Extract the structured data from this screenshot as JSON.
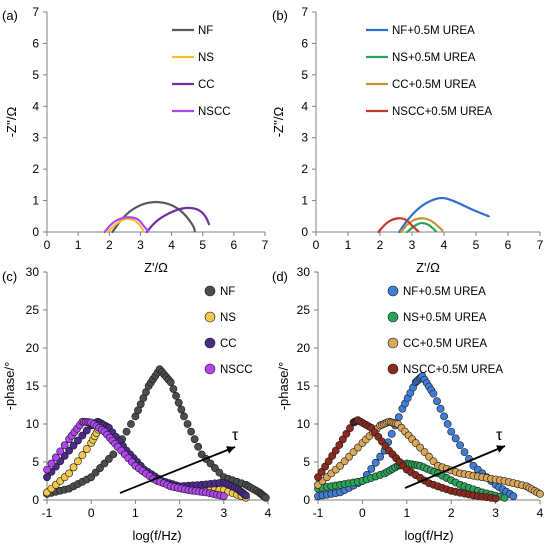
{
  "figure": {
    "panels": [
      {
        "id": "a",
        "label": "(a)",
        "xlabel": "Z'/Ω",
        "ylabel": "-Z''/Ω",
        "xlim": [
          0,
          7
        ],
        "ylim": [
          0,
          7
        ],
        "xticks": [
          "0",
          "1",
          "2",
          "3",
          "4",
          "5",
          "6",
          "7"
        ],
        "yticks": [
          "0",
          "1",
          "2",
          "3",
          "4",
          "5",
          "6",
          "7"
        ],
        "legend": [
          {
            "name": "NF",
            "color": "#595959"
          },
          {
            "name": "NS",
            "color": "#f2c12e"
          },
          {
            "name": "CC",
            "color": "#7030a0"
          },
          {
            "name": "NSCC",
            "color": "#b146f0"
          }
        ]
      },
      {
        "id": "b",
        "label": "(b)",
        "xlabel": "Z'/Ω",
        "ylabel": "-Z''/Ω",
        "xlim": [
          0,
          7
        ],
        "ylim": [
          0,
          7
        ],
        "xticks": [
          "0",
          "1",
          "2",
          "3",
          "4",
          "5",
          "6",
          "7"
        ],
        "yticks": [
          "0",
          "1",
          "2",
          "3",
          "4",
          "5",
          "6",
          "7"
        ],
        "legend": [
          {
            "name": "NF+0.5M UREA",
            "color": "#2e6fd1"
          },
          {
            "name": "NS+0.5M UREA",
            "color": "#2aa35a"
          },
          {
            "name": "CC+0.5M UREA",
            "color": "#c0963a"
          },
          {
            "name": "NSCC+0.5M UREA",
            "color": "#c0392b"
          }
        ]
      },
      {
        "id": "c",
        "label": "(c)",
        "xlabel": "log(f/Hz)",
        "ylabel": "-phase/°",
        "xlim": [
          -1,
          4
        ],
        "ylim": [
          0,
          30
        ],
        "xticks": [
          "-1",
          "0",
          "1",
          "2",
          "3",
          "4"
        ],
        "yticks": [
          "0",
          "5",
          "10",
          "15",
          "20",
          "25",
          "30"
        ],
        "annotation": "τ",
        "legend": [
          {
            "name": "NF",
            "color": "#4d4d4d"
          },
          {
            "name": "NS",
            "color": "#f2c94c"
          },
          {
            "name": "CC",
            "color": "#4b2a8a"
          },
          {
            "name": "NSCC",
            "color": "#b146f0"
          }
        ]
      },
      {
        "id": "d",
        "label": "(d)",
        "xlabel": "log(f/Hz)",
        "ylabel": "-phase/°",
        "xlim": [
          -1,
          4
        ],
        "ylim": [
          0,
          30
        ],
        "xticks": [
          "-1",
          "0",
          "1",
          "2",
          "3",
          "4"
        ],
        "yticks": [
          "0",
          "5",
          "10",
          "15",
          "20",
          "25",
          "30"
        ],
        "annotation": "τ",
        "legend": [
          {
            "name": "NF+0.5M UREA",
            "color": "#3f7ed8"
          },
          {
            "name": "NS+0.5M UREA",
            "color": "#2aa35a"
          },
          {
            "name": "CC+0.5M UREA",
            "color": "#d9a65a"
          },
          {
            "name": "NSCC+0.5M UREA",
            "color": "#8b2a1e"
          }
        ]
      }
    ]
  },
  "chart_data": [
    {
      "type": "line",
      "panel": "a",
      "xlabel": "Z'/Ω",
      "ylabel": "-Z''/Ω",
      "xlim": [
        0,
        7
      ],
      "ylim": [
        0,
        7
      ],
      "series": [
        {
          "name": "NF",
          "color": "#595959",
          "x": [
            2.1,
            2.5,
            3.0,
            3.5,
            4.0,
            4.4,
            4.7,
            4.75
          ],
          "y": [
            0,
            0.55,
            0.88,
            0.98,
            0.88,
            0.6,
            0.2,
            0.02
          ]
        },
        {
          "name": "NS",
          "color": "#f2c12e",
          "x": [
            1.95,
            2.2,
            2.5,
            2.8,
            3.0,
            3.1
          ],
          "y": [
            0,
            0.25,
            0.43,
            0.4,
            0.2,
            0.02
          ]
        },
        {
          "name": "CC",
          "color": "#7030a0",
          "x": [
            3.2,
            3.5,
            3.9,
            4.3,
            4.6,
            4.9,
            5.1,
            5.2
          ],
          "y": [
            0,
            0.35,
            0.6,
            0.75,
            0.78,
            0.7,
            0.5,
            0.25
          ]
        },
        {
          "name": "NSCC",
          "color": "#b146f0",
          "x": [
            1.85,
            2.1,
            2.4,
            2.7,
            2.95,
            3.1,
            3.25
          ],
          "y": [
            0,
            0.3,
            0.45,
            0.48,
            0.4,
            0.2,
            0.02
          ]
        }
      ]
    },
    {
      "type": "line",
      "panel": "b",
      "xlabel": "Z'/Ω",
      "ylabel": "-Z''/Ω",
      "xlim": [
        0,
        7
      ],
      "ylim": [
        0,
        7
      ],
      "series": [
        {
          "name": "NF+0.5M UREA",
          "color": "#2e6fd1",
          "x": [
            2.6,
            2.9,
            3.3,
            3.7,
            4.0,
            4.4,
            4.9,
            5.4
          ],
          "y": [
            0,
            0.45,
            0.85,
            1.05,
            1.1,
            0.95,
            0.7,
            0.5
          ]
        },
        {
          "name": "NS+0.5M UREA",
          "color": "#2aa35a",
          "x": [
            2.85,
            3.1,
            3.3,
            3.5,
            3.65,
            3.75
          ],
          "y": [
            0,
            0.22,
            0.3,
            0.25,
            0.12,
            0.02
          ]
        },
        {
          "name": "CC+0.5M UREA",
          "color": "#c0963a",
          "x": [
            2.65,
            2.9,
            3.2,
            3.5,
            3.75,
            3.95
          ],
          "y": [
            0,
            0.3,
            0.45,
            0.42,
            0.25,
            0.05
          ]
        },
        {
          "name": "NSCC+0.5M UREA",
          "color": "#c0392b",
          "x": [
            1.95,
            2.2,
            2.5,
            2.8,
            3.0,
            3.2
          ],
          "y": [
            0,
            0.3,
            0.45,
            0.42,
            0.2,
            0.02
          ]
        }
      ]
    },
    {
      "type": "scatter",
      "panel": "c",
      "xlabel": "log(f/Hz)",
      "ylabel": "-phase/°",
      "xlim": [
        -1,
        4
      ],
      "ylim": [
        0,
        30
      ],
      "series": [
        {
          "name": "NF",
          "color": "#4d4d4d",
          "x": [
            -1,
            -0.5,
            0,
            0.5,
            1.0,
            1.3,
            1.55,
            1.8,
            2.1,
            2.5,
            3.0,
            3.5,
            3.8,
            3.95
          ],
          "y": [
            0.8,
            1.5,
            3.0,
            6.0,
            11.0,
            15.0,
            17.2,
            15.5,
            11.0,
            6.0,
            3.0,
            2.0,
            1.0,
            0.3
          ]
        },
        {
          "name": "NS",
          "color": "#f2c94c",
          "x": [
            -1,
            -0.5,
            0,
            0.2,
            0.4,
            0.7,
            1.0,
            1.5,
            2.0,
            2.5,
            3.0,
            3.5
          ],
          "y": [
            1.0,
            3.5,
            7.5,
            9.7,
            9.0,
            7.0,
            4.5,
            2.5,
            1.6,
            1.5,
            1.3,
            0.3
          ]
        },
        {
          "name": "CC",
          "color": "#4b2a8a",
          "x": [
            -1,
            -0.5,
            0,
            0.15,
            0.4,
            0.8,
            1.2,
            1.6,
            2.0,
            2.5,
            3.0,
            3.3,
            3.5
          ],
          "y": [
            3.0,
            6.5,
            9.8,
            10.3,
            9.5,
            6.5,
            4.0,
            2.5,
            1.8,
            2.0,
            2.3,
            1.5,
            0.6
          ]
        },
        {
          "name": "NSCC",
          "color": "#b146f0",
          "x": [
            -1,
            -0.5,
            -0.2,
            0,
            0.3,
            0.6,
            1.0,
            1.4,
            1.8,
            2.2,
            2.6,
            3.0
          ],
          "y": [
            4.0,
            8.0,
            10.3,
            10.2,
            9.0,
            7.0,
            4.5,
            2.8,
            1.8,
            1.3,
            1.0,
            0.5
          ]
        }
      ]
    },
    {
      "type": "scatter",
      "panel": "d",
      "xlabel": "log(f/Hz)",
      "ylabel": "-phase/°",
      "xlim": [
        -1,
        4
      ],
      "ylim": [
        0,
        30
      ],
      "series": [
        {
          "name": "NF+0.5M UREA",
          "color": "#3f7ed8",
          "x": [
            -1,
            -0.5,
            0,
            0.5,
            0.9,
            1.2,
            1.35,
            1.6,
            2.0,
            2.5,
            3.0,
            3.4
          ],
          "y": [
            0.5,
            1.0,
            2.5,
            6.5,
            12.0,
            15.5,
            16.3,
            14.0,
            9.0,
            4.5,
            2.0,
            0.5
          ]
        },
        {
          "name": "NS+0.5M UREA",
          "color": "#2aa35a",
          "x": [
            -1,
            -0.5,
            0,
            0.5,
            0.8,
            1.0,
            1.3,
            1.7,
            2.2,
            2.7,
            3.2
          ],
          "y": [
            1.5,
            2.0,
            2.5,
            3.5,
            4.5,
            4.8,
            4.5,
            3.5,
            2.0,
            1.0,
            0.3
          ]
        },
        {
          "name": "CC+0.5M UREA",
          "color": "#d9a65a",
          "x": [
            -1,
            -0.5,
            0,
            0.4,
            0.6,
            0.8,
            1.2,
            1.7,
            2.2,
            2.7,
            3.2,
            3.7,
            4.0
          ],
          "y": [
            2.0,
            4.5,
            7.5,
            9.8,
            10.3,
            10.0,
            7.5,
            4.5,
            3.5,
            3.0,
            2.5,
            1.8,
            0.8
          ]
        },
        {
          "name": "NSCC+0.5M UREA",
          "color": "#8b2a1e",
          "x": [
            -1,
            -0.6,
            -0.2,
            -0.1,
            0.2,
            0.6,
            1.0,
            1.5,
            2.0,
            2.5,
            3.0
          ],
          "y": [
            3.0,
            6.5,
            10.2,
            10.5,
            9.5,
            6.5,
            4.0,
            2.2,
            1.2,
            0.6,
            0.2
          ]
        }
      ]
    }
  ]
}
